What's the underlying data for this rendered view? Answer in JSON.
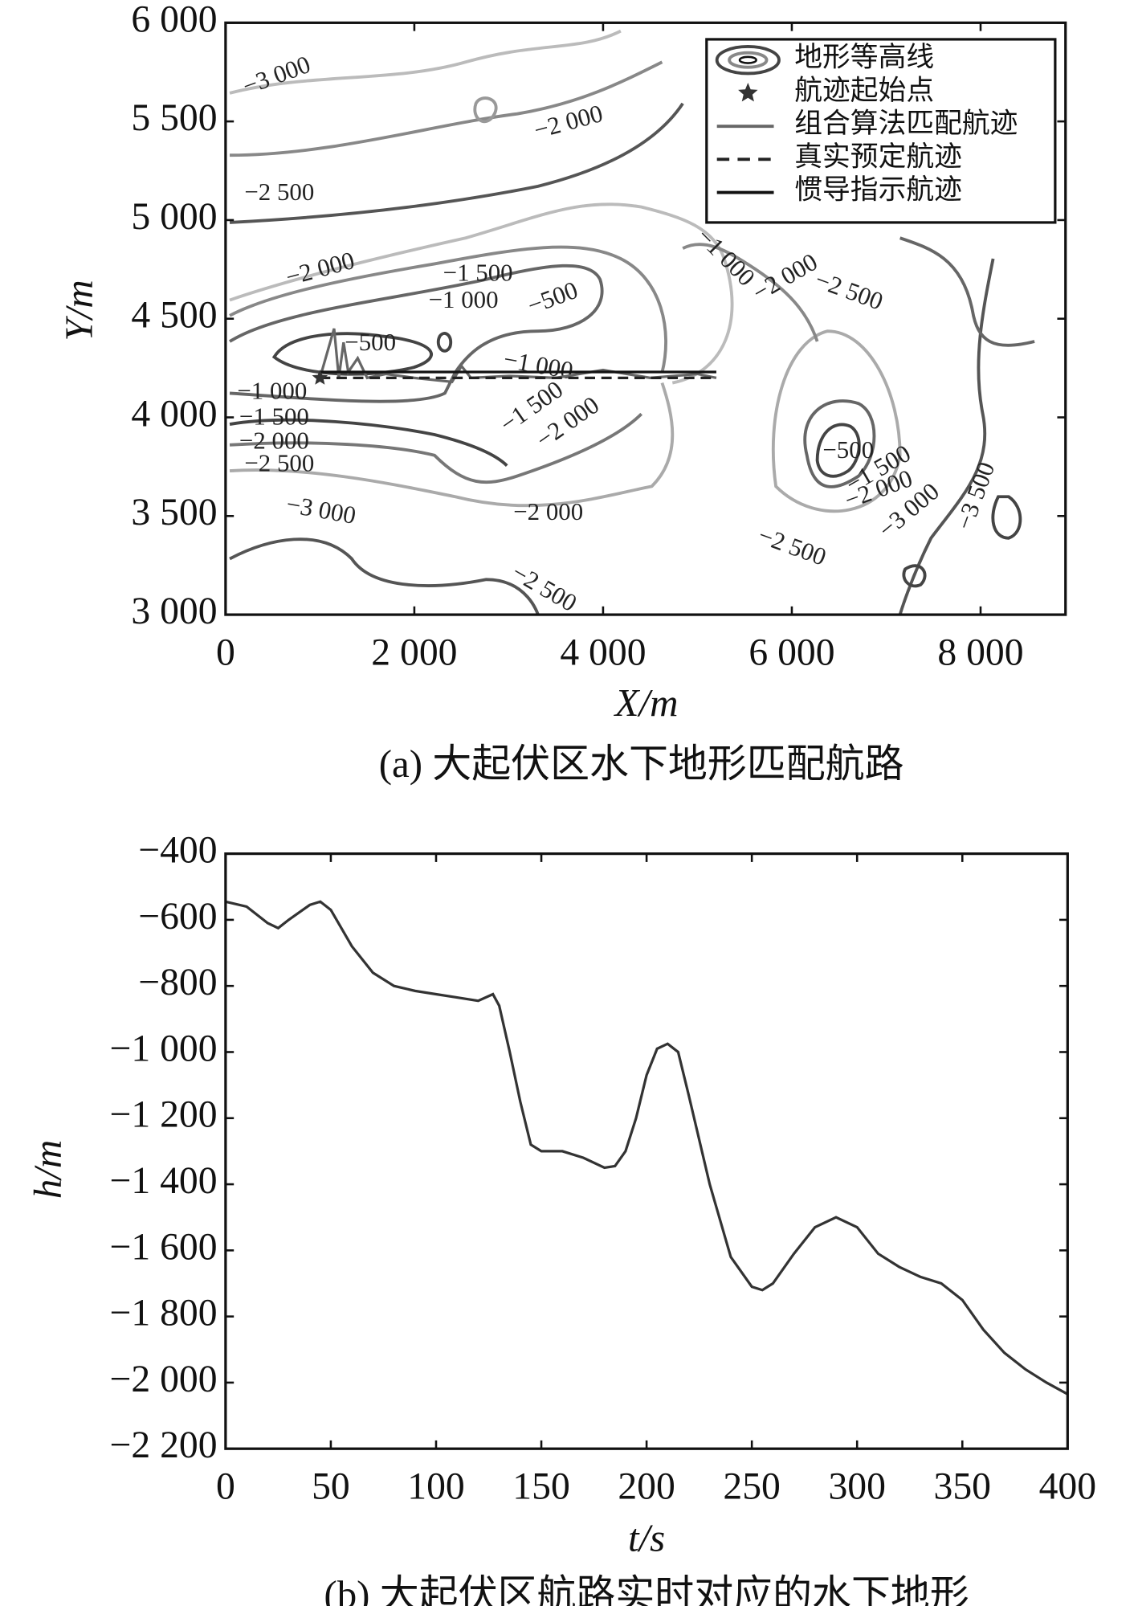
{
  "chart_data": [
    {
      "type": "line",
      "caption": "(a) 大起伏区水下地形匹配航路",
      "x_label": "X/m",
      "y_label": "Y/m",
      "xlim": [
        0,
        8900
      ],
      "ylim": [
        3000,
        6000
      ],
      "xticks": [
        0,
        {
          "value": 2000,
          "label": "2 000"
        },
        {
          "value": 4000,
          "label": "4 000"
        },
        {
          "value": 6000,
          "label": "6 000"
        },
        {
          "value": 8000,
          "label": "8 000"
        }
      ],
      "yticks": [
        {
          "value": 3000,
          "label": "3 000"
        },
        {
          "value": 3500,
          "label": "3 500"
        },
        {
          "value": 4000,
          "label": "4 000"
        },
        {
          "value": 4500,
          "label": "4 500"
        },
        {
          "value": 5000,
          "label": "5 000"
        },
        {
          "value": 5500,
          "label": "5 500"
        },
        {
          "value": 6000,
          "label": "6 000"
        }
      ],
      "contour_name": "地形等高线",
      "contour_labels": [
        "−3 000",
        "−2 500",
        "−2 000",
        "−2 000",
        "−1 500",
        "−1 000",
        "−500",
        "−500",
        "−1 000",
        "−1 500",
        "−2 000",
        "−1 000",
        "−1 500",
        "−2 000",
        "−2 500",
        "−3 000",
        "−2 000",
        "−2 500",
        "−2 500",
        "−3 000",
        "−3 500",
        "−1 000",
        "−2 000",
        "−2 500",
        "−500",
        "−1 500",
        "−2 000"
      ],
      "start_point": {
        "name": "航迹起始点",
        "x": 1000,
        "y": 4200
      },
      "series": [
        {
          "name": "组合算法匹配航迹",
          "color": "#666666",
          "dash": false,
          "x": [
            1000,
            1150,
            1200,
            1250,
            1300,
            1400,
            1500,
            1700,
            2000,
            2400,
            2500,
            2600,
            3000,
            3500,
            4000,
            4500,
            5000,
            5200
          ],
          "values": [
            4200,
            4450,
            4200,
            4380,
            4230,
            4300,
            4200,
            4220,
            4200,
            4180,
            4260,
            4200,
            4210,
            4200,
            4240,
            4200,
            4220,
            4200
          ]
        },
        {
          "name": "真实预定航迹",
          "color": "#222222",
          "dash": true,
          "x": [
            1000,
            5200
          ],
          "values": [
            4200,
            4200
          ]
        },
        {
          "name": "惯导指示航迹",
          "color": "#111111",
          "dash": false,
          "x": [
            1000,
            5200
          ],
          "values": [
            4230,
            4230
          ]
        }
      ]
    },
    {
      "type": "line",
      "caption": "(b) 大起伏区航路实时对应的水下地形",
      "x_label": "t/s",
      "y_label": "h/m",
      "xlim": [
        0,
        400
      ],
      "ylim": [
        -2200,
        -400
      ],
      "xticks": [
        0,
        50,
        100,
        150,
        200,
        250,
        300,
        350,
        400
      ],
      "yticks": [
        {
          "value": -400,
          "label": "−400"
        },
        {
          "value": -600,
          "label": "−600"
        },
        {
          "value": -800,
          "label": "−800"
        },
        {
          "value": -1000,
          "label": "−1 000"
        },
        {
          "value": -1200,
          "label": "−1 200"
        },
        {
          "value": -1400,
          "label": "−1 400"
        },
        {
          "value": -1600,
          "label": "−1 600"
        },
        {
          "value": -1800,
          "label": "−1 800"
        },
        {
          "value": -2000,
          "label": "−2 000"
        },
        {
          "value": -2200,
          "label": "−2 200"
        }
      ],
      "series": [
        {
          "color": "#333333",
          "dash": false,
          "x": [
            0,
            10,
            20,
            25,
            30,
            40,
            45,
            50,
            60,
            70,
            80,
            90,
            100,
            110,
            120,
            127,
            130,
            135,
            140,
            145,
            150,
            160,
            170,
            180,
            185,
            190,
            195,
            200,
            205,
            210,
            215,
            220,
            230,
            240,
            250,
            255,
            260,
            270,
            280,
            290,
            300,
            310,
            320,
            330,
            340,
            350,
            360,
            370,
            380,
            390,
            400
          ],
          "values": [
            -545,
            -560,
            -610,
            -625,
            -600,
            -555,
            -545,
            -570,
            -680,
            -760,
            -800,
            -815,
            -825,
            -835,
            -845,
            -825,
            -860,
            -1000,
            -1150,
            -1280,
            -1300,
            -1300,
            -1320,
            -1350,
            -1345,
            -1300,
            -1200,
            -1070,
            -990,
            -975,
            -1000,
            -1130,
            -1400,
            -1620,
            -1710,
            -1720,
            -1700,
            -1610,
            -1530,
            -1500,
            -1530,
            -1610,
            -1650,
            -1680,
            -1700,
            -1750,
            -1840,
            -1910,
            -1960,
            -2000,
            -2035
          ]
        }
      ]
    }
  ]
}
